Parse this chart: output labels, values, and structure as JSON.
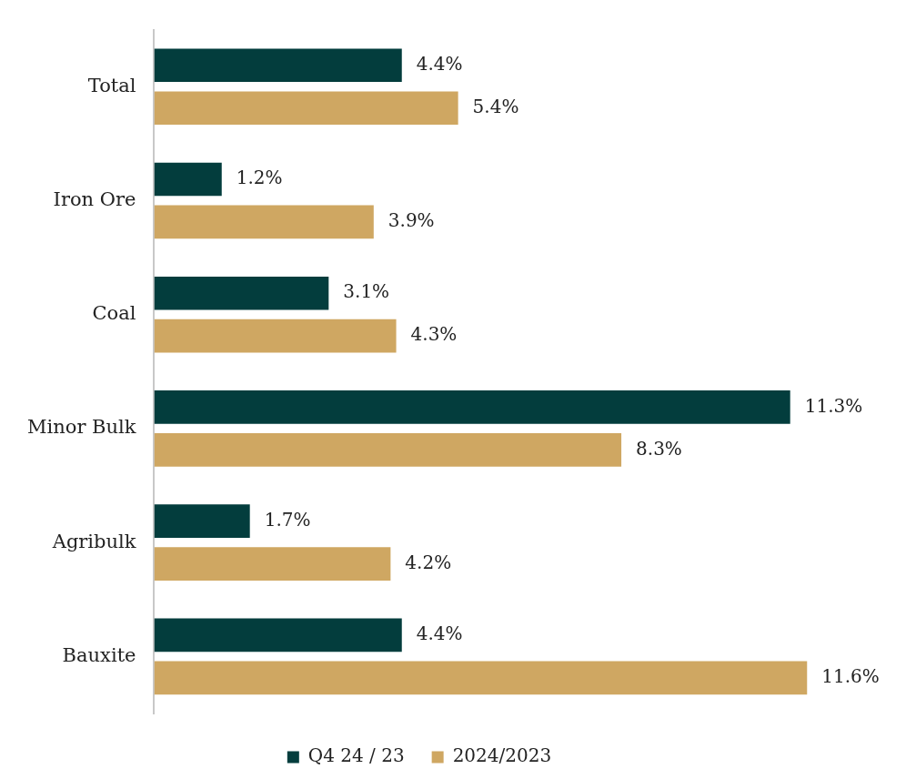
{
  "chart_data": {
    "type": "bar",
    "orientation": "horizontal",
    "relative": false,
    "categories": [
      "Total",
      "Iron Ore",
      "Coal",
      "Minor Bulk",
      "Agribulk",
      "Bauxite"
    ],
    "series": [
      {
        "name": "Q4 24 / 23",
        "color": "#033d3d",
        "values": [
          4.4,
          1.2,
          3.1,
          11.3,
          1.7,
          4.4
        ],
        "value_labels": [
          "4.4%",
          "1.2%",
          "3.1%",
          "11.3%",
          "1.7%",
          "4.4%"
        ]
      },
      {
        "name": "2024/2023",
        "color": "#cfa762",
        "values": [
          5.4,
          3.9,
          4.3,
          8.3,
          4.2,
          11.6
        ],
        "value_labels": [
          "5.4%",
          "3.9%",
          "4.3%",
          "8.3%",
          "4.2%",
          "11.6%"
        ]
      }
    ],
    "grid": false,
    "legend": "bottom"
  }
}
